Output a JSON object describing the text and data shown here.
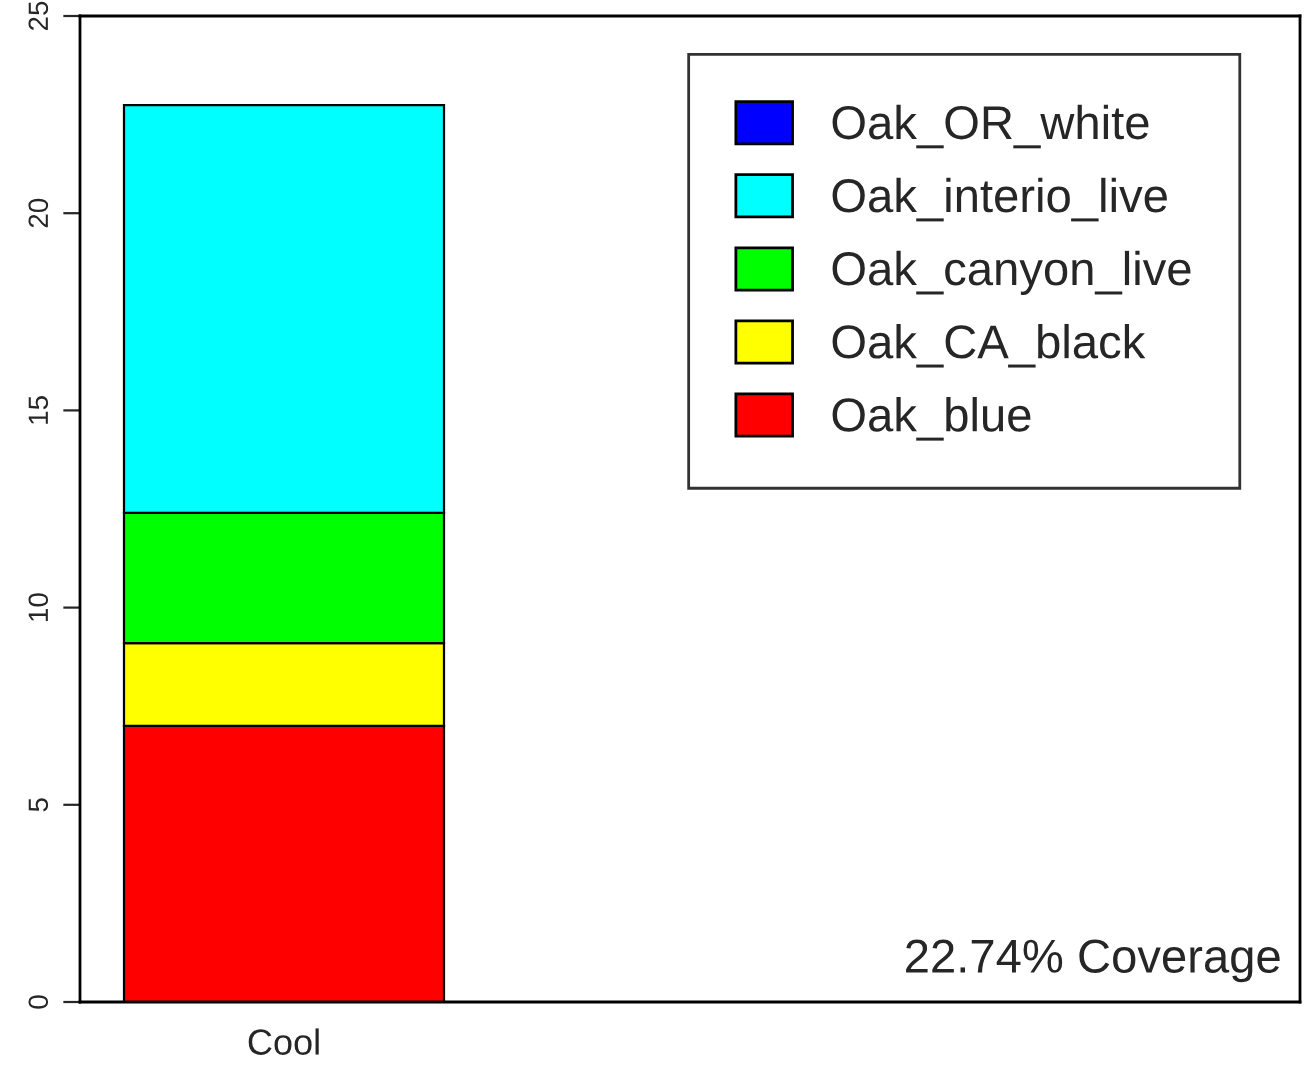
{
  "chart_data": {
    "type": "bar",
    "stacked": true,
    "categories": [
      "Cool"
    ],
    "series": [
      {
        "name": "Oak_blue",
        "color": "#ff0000",
        "values": [
          7.0
        ]
      },
      {
        "name": "Oak_CA_black",
        "color": "#ffff00",
        "values": [
          2.1
        ]
      },
      {
        "name": "Oak_canyon_live",
        "color": "#00ff00",
        "values": [
          3.3
        ]
      },
      {
        "name": "Oak_interio_live",
        "color": "#00ffff",
        "values": [
          10.34
        ]
      },
      {
        "name": "Oak_OR_white",
        "color": "#0000ff",
        "values": [
          0
        ]
      }
    ],
    "ylim": [
      0,
      25
    ],
    "yticks": [
      0,
      5,
      10,
      15,
      20,
      25
    ],
    "grid": false,
    "legend": "top right",
    "annotations": [
      "22.74% Coverage"
    ]
  }
}
